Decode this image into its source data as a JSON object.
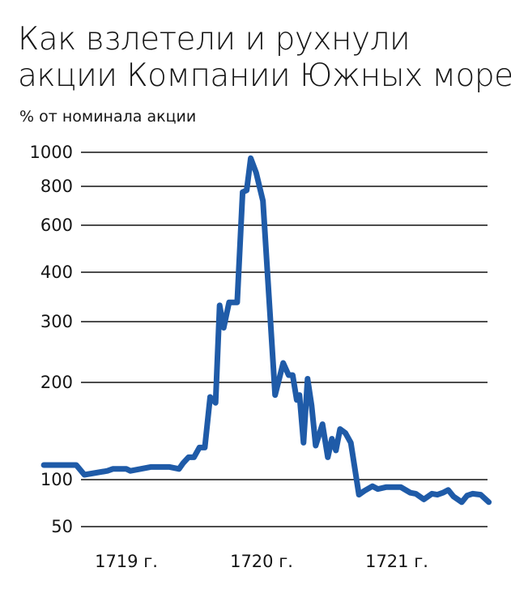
{
  "title_lines": [
    "Как взлетели и рухнули",
    "акции Компании Южных морей"
  ],
  "subtitle": "% от номинала акции",
  "colors": {
    "line": "#1f5ba8",
    "grid": "#111111",
    "text": "#151515"
  },
  "chart_data": {
    "type": "line",
    "title": "Как взлетели и рухнули акции Компании Южных морей",
    "ylabel": "% от номинала акции",
    "xlabel": "",
    "y_scale": "nonlinear (tick positions as shown)",
    "y_ticks": [
      50,
      100,
      200,
      300,
      400,
      600,
      800,
      1000
    ],
    "x_ticks": [
      {
        "label": "1719 г.",
        "x": 1719.0
      },
      {
        "label": "1720 г.",
        "x": 1720.0
      },
      {
        "label": "1721 г.",
        "x": 1721.0
      }
    ],
    "xlim": [
      1718.4,
      1721.8
    ],
    "grid": true,
    "legend": "none",
    "series": [
      {
        "x": [
          1718.39,
          1718.58,
          1718.63,
          1718.69,
          1718.86,
          1718.9,
          1719.0,
          1719.03,
          1719.18,
          1719.28,
          1719.32,
          1719.39,
          1719.42,
          1719.46,
          1719.5,
          1719.54,
          1719.58,
          1719.62,
          1719.66,
          1719.69,
          1719.72,
          1719.76,
          1719.82,
          1719.86,
          1719.89,
          1719.92,
          1719.96,
          1720.01,
          1720.1,
          1720.16,
          1720.2,
          1720.23,
          1720.26,
          1720.28,
          1720.31,
          1720.34,
          1720.37,
          1720.4,
          1720.45,
          1720.49,
          1720.52,
          1720.55,
          1720.58,
          1720.62,
          1720.66,
          1720.72,
          1720.76,
          1720.82,
          1720.86,
          1720.92,
          1720.96,
          1721.0,
          1721.03,
          1721.1,
          1721.14,
          1721.2,
          1721.26,
          1721.3,
          1721.34,
          1721.38,
          1721.42,
          1721.48,
          1721.52,
          1721.56,
          1721.62,
          1721.68
        ],
        "y": [
          115,
          115,
          115,
          105,
          109,
          111,
          111,
          109,
          113,
          113,
          113,
          111,
          117,
          123,
          123,
          133,
          133,
          185,
          179,
          333,
          290,
          339,
          339,
          770,
          780,
          965,
          880,
          725,
          187,
          232,
          212,
          212,
          182,
          187,
          138,
          206,
          176,
          135,
          157,
          123,
          142,
          130,
          152,
          148,
          138,
          84,
          88,
          93,
          90,
          92,
          92,
          92,
          92,
          86,
          85,
          79,
          85,
          84,
          86,
          89,
          82,
          76,
          83,
          85,
          84,
          76
        ]
      }
    ]
  }
}
